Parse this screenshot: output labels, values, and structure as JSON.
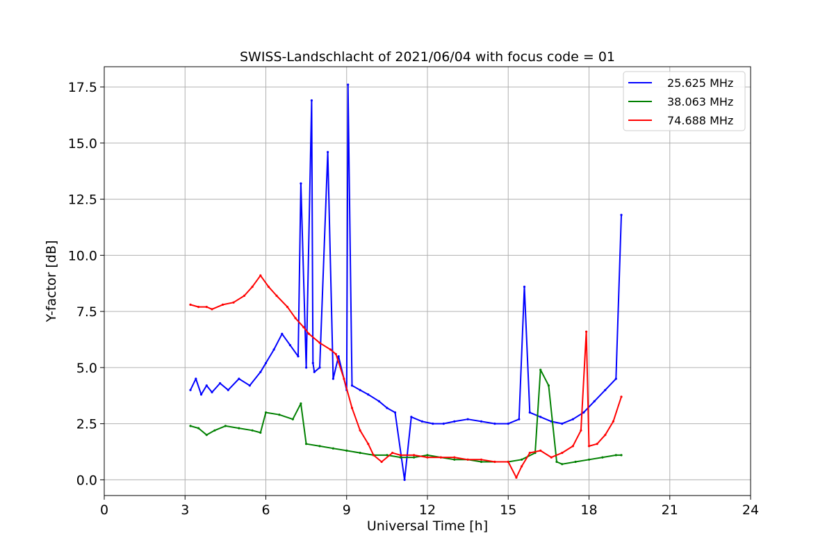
{
  "chart_data": {
    "type": "line",
    "title": "SWISS-Landschlacht of 2021/06/04 with focus code = 01",
    "xlabel": "Universal Time [h]",
    "ylabel": "Y-factor [dB]",
    "xlim": [
      0,
      24
    ],
    "ylim": [
      -0.7,
      18.4
    ],
    "xticks": [
      0,
      3,
      6,
      9,
      12,
      15,
      18,
      21,
      24
    ],
    "xtick_labels": [
      "0",
      "3",
      "6",
      "9",
      "12",
      "15",
      "18",
      "21",
      "24"
    ],
    "yticks": [
      0.0,
      2.5,
      5.0,
      7.5,
      10.0,
      12.5,
      15.0,
      17.5
    ],
    "ytick_labels": [
      "0.0",
      "2.5",
      "5.0",
      "7.5",
      "10.0",
      "12.5",
      "15.0",
      "17.5"
    ],
    "grid": true,
    "legend_position": "top-right",
    "series": [
      {
        "name": "25.625 MHz",
        "color": "#0000ff",
        "x": [
          3.2,
          3.4,
          3.6,
          3.8,
          4.0,
          4.3,
          4.6,
          5.0,
          5.4,
          5.8,
          6.0,
          6.3,
          6.6,
          6.9,
          7.2,
          7.3,
          7.5,
          7.7,
          7.75,
          7.8,
          8.0,
          8.3,
          8.5,
          8.7,
          9.0,
          9.05,
          9.2,
          9.5,
          9.8,
          10.2,
          10.5,
          10.8,
          11.15,
          11.4,
          11.8,
          12.2,
          12.6,
          13.0,
          13.5,
          14.0,
          14.5,
          15.0,
          15.4,
          15.6,
          15.8,
          16.2,
          16.6,
          17.0,
          17.4,
          17.8,
          18.2,
          18.6,
          19.0,
          19.2
        ],
        "y": [
          4.0,
          4.5,
          3.8,
          4.2,
          3.9,
          4.3,
          4.0,
          4.5,
          4.2,
          4.8,
          5.2,
          5.8,
          6.5,
          6.0,
          5.5,
          13.2,
          5.0,
          16.9,
          5.2,
          4.8,
          5.0,
          14.6,
          4.5,
          5.5,
          4.0,
          17.6,
          4.2,
          4.0,
          3.8,
          3.5,
          3.2,
          3.0,
          0.0,
          2.8,
          2.6,
          2.5,
          2.5,
          2.6,
          2.7,
          2.6,
          2.5,
          2.5,
          2.7,
          8.6,
          3.0,
          2.8,
          2.6,
          2.5,
          2.7,
          3.0,
          3.5,
          4.0,
          4.5,
          11.8
        ]
      },
      {
        "name": "38.063 MHz",
        "color": "#008000",
        "x": [
          3.2,
          3.5,
          3.8,
          4.1,
          4.5,
          5.0,
          5.5,
          5.8,
          6.0,
          6.5,
          7.0,
          7.3,
          7.5,
          8.0,
          8.5,
          9.0,
          9.5,
          10.0,
          10.5,
          11.0,
          11.5,
          12.0,
          12.5,
          13.0,
          13.5,
          14.0,
          14.5,
          15.0,
          15.5,
          16.0,
          16.2,
          16.5,
          16.8,
          17.0,
          17.5,
          18.0,
          18.5,
          19.0,
          19.2
        ],
        "y": [
          2.4,
          2.3,
          2.0,
          2.2,
          2.4,
          2.3,
          2.2,
          2.1,
          3.0,
          2.9,
          2.7,
          3.4,
          1.6,
          1.5,
          1.4,
          1.3,
          1.2,
          1.1,
          1.1,
          1.0,
          1.0,
          1.1,
          1.0,
          0.9,
          0.9,
          0.8,
          0.8,
          0.8,
          0.9,
          1.2,
          4.9,
          4.2,
          0.8,
          0.7,
          0.8,
          0.9,
          1.0,
          1.1,
          1.1
        ]
      },
      {
        "name": "74.688 MHz",
        "color": "#ff0000",
        "x": [
          3.2,
          3.5,
          3.8,
          4.0,
          4.4,
          4.8,
          5.2,
          5.5,
          5.8,
          6.1,
          6.4,
          6.8,
          7.1,
          7.4,
          7.6,
          8.0,
          8.4,
          8.6,
          8.9,
          9.2,
          9.5,
          9.8,
          10.0,
          10.3,
          10.7,
          11.0,
          11.5,
          12.0,
          12.5,
          13.0,
          13.5,
          14.0,
          14.5,
          15.0,
          15.3,
          15.5,
          15.8,
          16.2,
          16.6,
          17.0,
          17.4,
          17.7,
          17.9,
          18.0,
          18.3,
          18.6,
          18.9,
          19.2
        ],
        "y": [
          7.8,
          7.7,
          7.7,
          7.6,
          7.8,
          7.9,
          8.2,
          8.6,
          9.1,
          8.6,
          8.2,
          7.7,
          7.2,
          6.8,
          6.5,
          6.1,
          5.8,
          5.6,
          4.5,
          3.2,
          2.2,
          1.6,
          1.1,
          0.8,
          1.2,
          1.1,
          1.1,
          1.0,
          1.0,
          1.0,
          0.9,
          0.9,
          0.8,
          0.8,
          0.1,
          0.6,
          1.2,
          1.3,
          1.0,
          1.2,
          1.5,
          2.2,
          6.6,
          1.5,
          1.6,
          2.0,
          2.6,
          3.7
        ]
      }
    ]
  }
}
